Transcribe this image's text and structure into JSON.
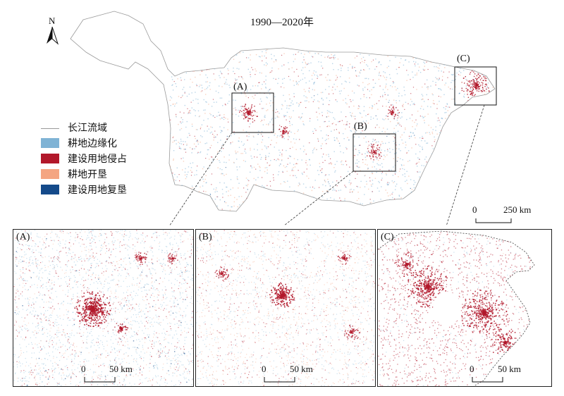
{
  "title": "1990—2020年",
  "north_arrow": {
    "label": "N"
  },
  "legend": {
    "items": [
      {
        "label": "长江流域",
        "color": "#9a9a9a",
        "kind": "line"
      },
      {
        "label": "耕地边缘化",
        "color": "#7fb3d5",
        "kind": "fill"
      },
      {
        "label": "建设用地侵占",
        "color": "#b2182b",
        "kind": "fill"
      },
      {
        "label": "耕地开垦",
        "color": "#f4a582",
        "kind": "fill"
      },
      {
        "label": "建设用地复垦",
        "color": "#144a8a",
        "kind": "fill"
      }
    ]
  },
  "main_map": {
    "scale_bar": {
      "start": "0",
      "end": "250 km"
    },
    "boxes": [
      {
        "label": "(A)"
      },
      {
        "label": "(B)"
      },
      {
        "label": "(C)"
      }
    ]
  },
  "panels": [
    {
      "label": "(A)",
      "scale_start": "0",
      "scale_end": "50 km"
    },
    {
      "label": "(B)",
      "scale_start": "0",
      "scale_end": "50 km"
    },
    {
      "label": "(C)",
      "scale_start": "0",
      "scale_end": "50 km"
    }
  ]
}
